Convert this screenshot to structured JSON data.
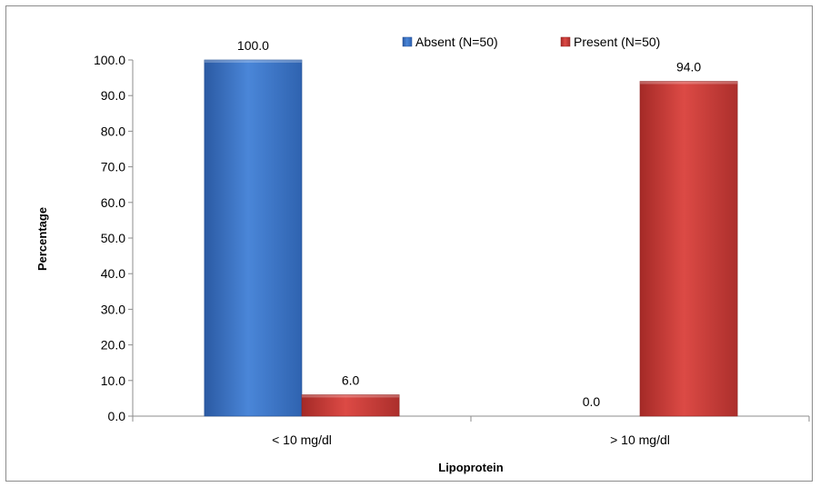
{
  "chart_data": {
    "type": "bar",
    "title": "",
    "xlabel": "Lipoprotein",
    "ylabel": "Percentage",
    "categories": [
      "< 10 mg/dl",
      "> 10 mg/dl"
    ],
    "series": [
      {
        "name": "Absent (N=50)",
        "values": [
          100.0,
          0.0
        ],
        "color": "#3f77c9",
        "labels": [
          "100.0",
          "0.0"
        ]
      },
      {
        "name": "Present (N=50)",
        "values": [
          6.0,
          94.0
        ],
        "color": "#cd3d3a",
        "labels": [
          "6.0",
          "94.0"
        ]
      }
    ],
    "ylim": [
      0,
      100
    ],
    "yticks": [
      "0.0",
      "10.0",
      "20.0",
      "30.0",
      "40.0",
      "50.0",
      "60.0",
      "70.0",
      "80.0",
      "90.0",
      "100.0"
    ],
    "grid": false,
    "legend_position": "top"
  }
}
